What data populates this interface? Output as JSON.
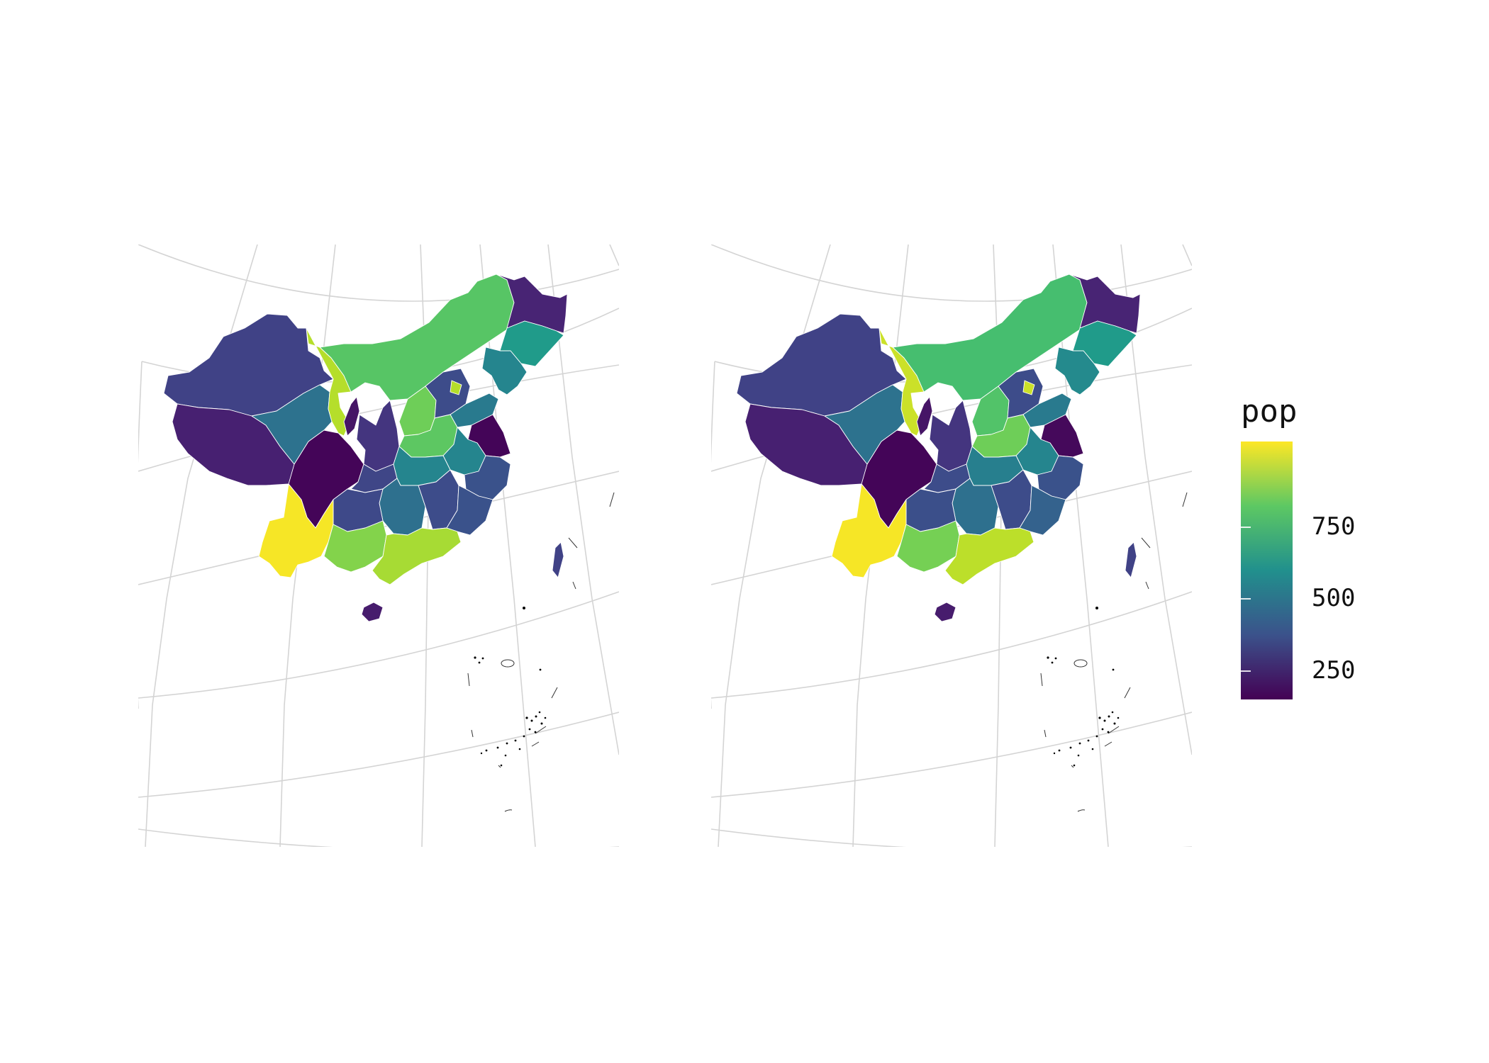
{
  "legend": {
    "title": "pop",
    "range": [
      150,
      1050
    ],
    "ticks": [
      {
        "value": 250,
        "label": "250"
      },
      {
        "value": 500,
        "label": "500"
      },
      {
        "value": 750,
        "label": "750"
      }
    ],
    "colormap": "viridis"
  },
  "maps": [
    {
      "name": "left",
      "regions": [
        {
          "id": "xinjiang",
          "value": 330
        },
        {
          "id": "tibet",
          "value": 230
        },
        {
          "id": "qinghai",
          "value": 490
        },
        {
          "id": "gansu",
          "value": 950
        },
        {
          "id": "inner-mongolia",
          "value": 810
        },
        {
          "id": "heilongjiang",
          "value": 240
        },
        {
          "id": "jilin",
          "value": 640
        },
        {
          "id": "liaoning",
          "value": 560
        },
        {
          "id": "ningxia",
          "value": 200
        },
        {
          "id": "shaanxi",
          "value": 290
        },
        {
          "id": "shanxi",
          "value": 850
        },
        {
          "id": "hebei",
          "value": 360
        },
        {
          "id": "beijing",
          "value": 950
        },
        {
          "id": "shandong",
          "value": 520
        },
        {
          "id": "henan",
          "value": 820
        },
        {
          "id": "jiangsu",
          "value": 160
        },
        {
          "id": "anhui",
          "value": 560
        },
        {
          "id": "sichuan",
          "value": 160
        },
        {
          "id": "chongqing",
          "value": 340
        },
        {
          "id": "hubei",
          "value": 560
        },
        {
          "id": "hunan",
          "value": 480
        },
        {
          "id": "jiangxi",
          "value": 360
        },
        {
          "id": "zhejiang",
          "value": 380
        },
        {
          "id": "fujian",
          "value": 380
        },
        {
          "id": "guizhou",
          "value": 350
        },
        {
          "id": "yunnan",
          "value": 1040
        },
        {
          "id": "guangxi",
          "value": 880
        },
        {
          "id": "guangdong",
          "value": 930
        },
        {
          "id": "hainan",
          "value": 220
        },
        {
          "id": "taiwan",
          "value": 330
        }
      ]
    },
    {
      "name": "right",
      "regions": [
        {
          "id": "xinjiang",
          "value": 330
        },
        {
          "id": "tibet",
          "value": 230
        },
        {
          "id": "qinghai",
          "value": 490
        },
        {
          "id": "gansu",
          "value": 980
        },
        {
          "id": "inner-mongolia",
          "value": 780
        },
        {
          "id": "heilongjiang",
          "value": 240
        },
        {
          "id": "jilin",
          "value": 640
        },
        {
          "id": "liaoning",
          "value": 580
        },
        {
          "id": "ningxia",
          "value": 200
        },
        {
          "id": "shaanxi",
          "value": 290
        },
        {
          "id": "shanxi",
          "value": 800
        },
        {
          "id": "hebei",
          "value": 360
        },
        {
          "id": "beijing",
          "value": 980
        },
        {
          "id": "shandong",
          "value": 520
        },
        {
          "id": "henan",
          "value": 850
        },
        {
          "id": "jiangsu",
          "value": 170
        },
        {
          "id": "anhui",
          "value": 560
        },
        {
          "id": "sichuan",
          "value": 160
        },
        {
          "id": "chongqing",
          "value": 360
        },
        {
          "id": "hubei",
          "value": 540
        },
        {
          "id": "hunan",
          "value": 480
        },
        {
          "id": "jiangxi",
          "value": 360
        },
        {
          "id": "zhejiang",
          "value": 380
        },
        {
          "id": "fujian",
          "value": 430
        },
        {
          "id": "guizhou",
          "value": 370
        },
        {
          "id": "yunnan",
          "value": 1040
        },
        {
          "id": "guangxi",
          "value": 860
        },
        {
          "id": "guangdong",
          "value": 960
        },
        {
          "id": "hainan",
          "value": 220
        },
        {
          "id": "taiwan",
          "value": 330
        }
      ]
    }
  ]
}
